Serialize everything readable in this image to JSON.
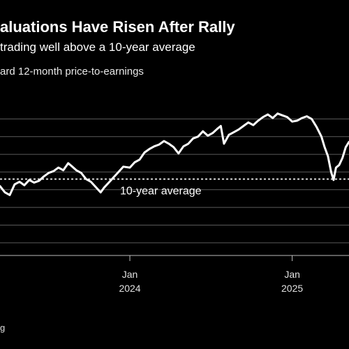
{
  "chart_data": {
    "type": "line",
    "title": "aluations Have Risen After Rally",
    "subtitle": "trading well above a 10-year average",
    "ylabel": "ard 12-month price-to-earnings",
    "source": "g",
    "x_ticks": [
      {
        "label": "Jan",
        "year": "2024",
        "x": 2024.0
      },
      {
        "label": "Jan",
        "year": "2025",
        "x": 2025.0
      }
    ],
    "xlim": [
      2023.2,
      2025.35
    ],
    "ylim": [
      14.6,
      23.0
    ],
    "y_gridlines": [
      15,
      16,
      17,
      18,
      19,
      20,
      21,
      22
    ],
    "average": {
      "value": 18.6,
      "label": "10-year average"
    },
    "colors": {
      "line": "#ffffff",
      "grid": "#5a5a5a",
      "background": "#000000"
    },
    "series": [
      {
        "values": [
          [
            2023.2,
            18.2
          ],
          [
            2023.23,
            17.85
          ],
          [
            2023.26,
            17.7
          ],
          [
            2023.29,
            18.3
          ],
          [
            2023.32,
            18.45
          ],
          [
            2023.35,
            18.25
          ],
          [
            2023.38,
            18.55
          ],
          [
            2023.41,
            18.4
          ],
          [
            2023.44,
            18.5
          ],
          [
            2023.47,
            18.75
          ],
          [
            2023.5,
            18.95
          ],
          [
            2023.53,
            19.05
          ],
          [
            2023.56,
            19.25
          ],
          [
            2023.59,
            19.1
          ],
          [
            2023.62,
            19.5
          ],
          [
            2023.64,
            19.35
          ],
          [
            2023.67,
            19.1
          ],
          [
            2023.7,
            18.95
          ],
          [
            2023.73,
            18.6
          ],
          [
            2023.76,
            18.45
          ],
          [
            2023.79,
            18.15
          ],
          [
            2023.82,
            17.85
          ],
          [
            2023.84,
            18.1
          ],
          [
            2023.87,
            18.4
          ],
          [
            2023.9,
            18.7
          ],
          [
            2023.93,
            19.0
          ],
          [
            2023.96,
            19.3
          ],
          [
            2024.0,
            19.25
          ],
          [
            2024.03,
            19.55
          ],
          [
            2024.06,
            19.7
          ],
          [
            2024.09,
            20.1
          ],
          [
            2024.12,
            20.3
          ],
          [
            2024.15,
            20.45
          ],
          [
            2024.18,
            20.55
          ],
          [
            2024.21,
            20.75
          ],
          [
            2024.24,
            20.6
          ],
          [
            2024.27,
            20.4
          ],
          [
            2024.3,
            20.05
          ],
          [
            2024.33,
            20.45
          ],
          [
            2024.36,
            20.6
          ],
          [
            2024.39,
            20.9
          ],
          [
            2024.42,
            21.0
          ],
          [
            2024.45,
            21.3
          ],
          [
            2024.48,
            21.05
          ],
          [
            2024.51,
            21.2
          ],
          [
            2024.54,
            21.45
          ],
          [
            2024.56,
            21.6
          ],
          [
            2024.58,
            20.6
          ],
          [
            2024.61,
            21.1
          ],
          [
            2024.64,
            21.25
          ],
          [
            2024.67,
            21.4
          ],
          [
            2024.7,
            21.6
          ],
          [
            2024.73,
            21.8
          ],
          [
            2024.76,
            21.65
          ],
          [
            2024.79,
            21.9
          ],
          [
            2024.82,
            22.1
          ],
          [
            2024.85,
            22.25
          ],
          [
            2024.88,
            22.05
          ],
          [
            2024.91,
            22.3
          ],
          [
            2024.94,
            22.2
          ],
          [
            2024.97,
            22.1
          ],
          [
            2025.0,
            21.85
          ],
          [
            2025.03,
            21.9
          ],
          [
            2025.06,
            22.05
          ],
          [
            2025.09,
            22.15
          ],
          [
            2025.12,
            22.0
          ],
          [
            2025.15,
            21.55
          ],
          [
            2025.18,
            21.0
          ],
          [
            2025.2,
            20.4
          ],
          [
            2025.22,
            19.9
          ],
          [
            2025.24,
            19.0
          ],
          [
            2025.255,
            18.55
          ],
          [
            2025.27,
            19.25
          ],
          [
            2025.29,
            19.4
          ],
          [
            2025.31,
            19.8
          ],
          [
            2025.33,
            20.4
          ],
          [
            2025.35,
            20.7
          ]
        ]
      }
    ]
  }
}
